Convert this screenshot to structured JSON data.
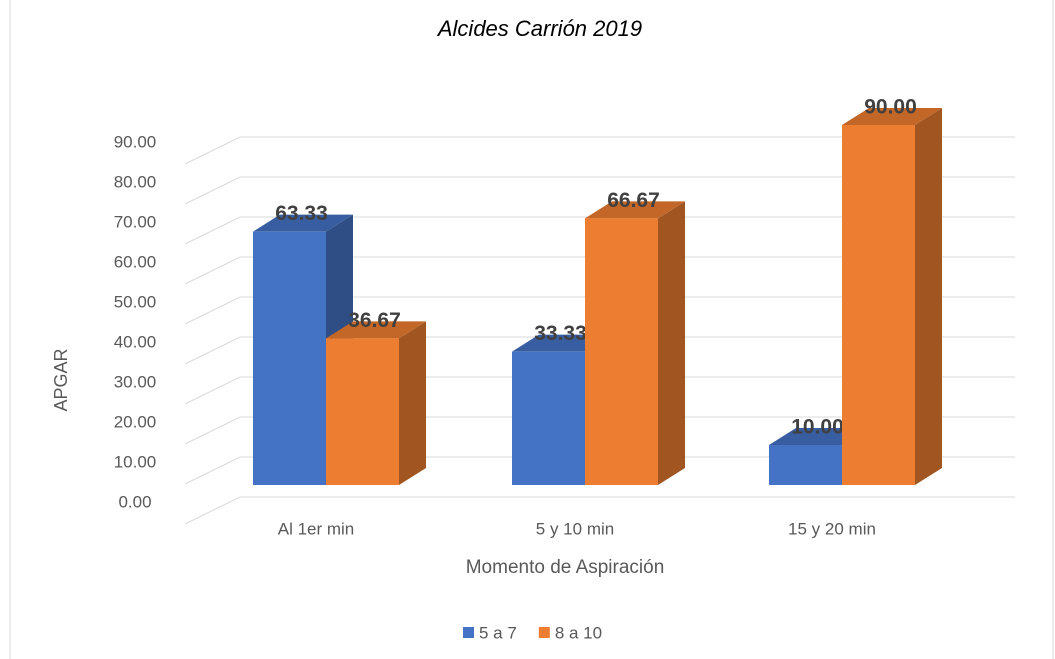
{
  "chart_data": {
    "type": "bar3d",
    "title": "Alcides Carrión 2019",
    "x_label": "Momento de Aspiración",
    "y_label": "APGAR",
    "categories": [
      "Al 1er min",
      "5 y 10 min",
      "15 y 20 min"
    ],
    "series": [
      {
        "name": "5 a 7",
        "color": "#4472c4",
        "values": [
          63.33,
          33.33,
          10
        ],
        "value_labels": [
          "63.33",
          "33.33",
          "10.00"
        ]
      },
      {
        "name": "8 a 10",
        "color": "#ed7d31",
        "values": [
          36.67,
          66.67,
          90
        ],
        "value_labels": [
          "36.67",
          "66.67",
          "90.00"
        ]
      }
    ],
    "ylim": [
      0,
      100
    ],
    "yticks": [
      {
        "value": 0,
        "label": "0.00"
      },
      {
        "value": 10,
        "label": "10.00"
      },
      {
        "value": 20,
        "label": "20.00"
      },
      {
        "value": 30,
        "label": "30.00"
      },
      {
        "value": 40,
        "label": "40.00"
      },
      {
        "value": 50,
        "label": "50.00"
      },
      {
        "value": 60,
        "label": "60.00"
      },
      {
        "value": 70,
        "label": "70.00"
      },
      {
        "value": 80,
        "label": "80.00"
      },
      {
        "value": 90,
        "label": "90.00"
      }
    ],
    "grid": true,
    "legend": "bottom"
  }
}
